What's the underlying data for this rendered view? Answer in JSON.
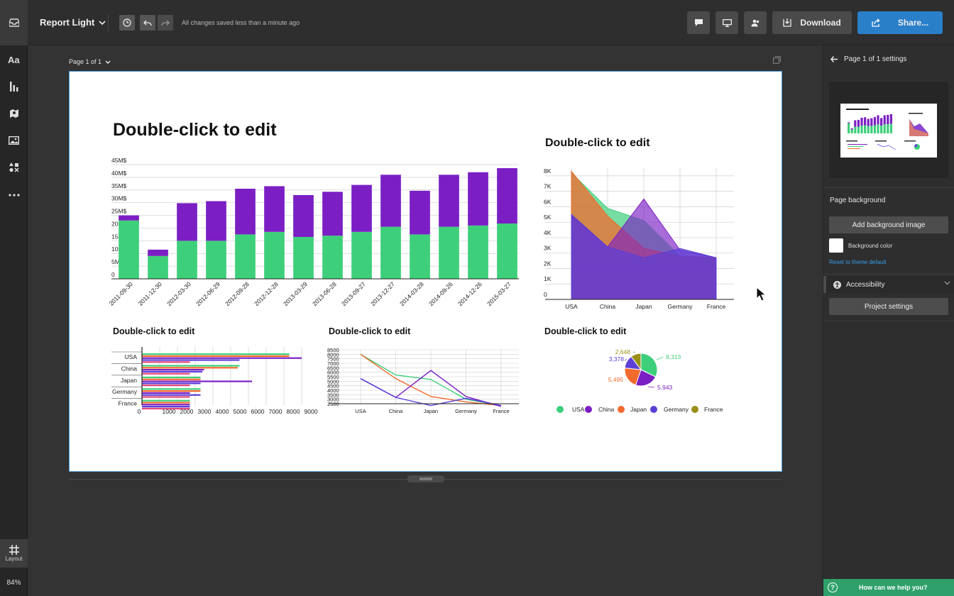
{
  "app": {
    "title": "Report Light",
    "save_status": "All changes saved less than a minute ago",
    "download_label": "Download",
    "share_label": "Share...",
    "zoom": "84%",
    "layout_label": "Layout"
  },
  "canvas": {
    "page_selector": "Page 1 of 1"
  },
  "right_panel": {
    "header": "Page 1 of 1 settings",
    "page_background_label": "Page background",
    "add_background_image": "Add background image",
    "background_color_label": "Background color",
    "background_color": "#ffffff",
    "reset_link": "Reset to theme default",
    "accessibility_label": "Accessibility",
    "project_settings": "Project settings",
    "help_label": "How can we help you?",
    "help_icon_glyph": "?"
  },
  "colors": {
    "green": "#3ecf7a",
    "purple": "#7b1fc4",
    "orange": "#f26a2e",
    "indigo": "#5b3fd6",
    "olive": "#9a8f17",
    "accent": "#2a7fc9",
    "help": "#2fa06a"
  },
  "chart_data": [
    {
      "id": "stacked-bar",
      "type": "bar",
      "title": "Double-click to edit",
      "categories": [
        "2011-09-30",
        "2011-12-30",
        "2012-03-30",
        "2012-06-29",
        "2012-09-28",
        "2012-12-28",
        "2013-03-29",
        "2013-06-28",
        "2013-09-27",
        "2013-12-27",
        "2014-03-28",
        "2014-09-26",
        "2014-12-26",
        "2015-03-27"
      ],
      "series": [
        {
          "values": [
            23,
            9,
            15,
            15,
            17.5,
            18.5,
            16.5,
            17,
            18.5,
            20.5,
            17.5,
            20.5,
            21,
            21.8
          ]
        },
        {
          "values": [
            2,
            2.5,
            14.8,
            15.6,
            18,
            18,
            16.5,
            17.3,
            18.5,
            20.5,
            17.2,
            20.5,
            21,
            21.8
          ]
        }
      ],
      "ylim": [
        0,
        45
      ],
      "yticks": [
        "0",
        "5M$",
        "10M$",
        "15M$",
        "20M$",
        "25M$",
        "30M$",
        "35M$",
        "40M$",
        "45M$"
      ]
    },
    {
      "id": "area",
      "type": "area",
      "title": "Double-click to edit",
      "categories": [
        "USA",
        "China",
        "Japan",
        "Germany",
        "France"
      ],
      "series": [
        {
          "values": [
            8200,
            5900,
            5100,
            2800,
            2700
          ]
        },
        {
          "values": [
            8300,
            5400,
            3300,
            2800,
            2700
          ]
        },
        {
          "values": [
            5400,
            3400,
            6500,
            3200,
            2700
          ]
        },
        {
          "values": [
            5500,
            3400,
            2700,
            3300,
            2700
          ]
        }
      ],
      "ylim": [
        0,
        8500
      ],
      "yticks": [
        "0",
        "1K",
        "2K",
        "3K",
        "4K",
        "5K",
        "6K",
        "7K",
        "8K"
      ]
    },
    {
      "id": "hbar",
      "type": "bar",
      "title": "Double-click to edit",
      "categories": [
        "USA",
        "China",
        "Japan",
        "Germany",
        "France"
      ],
      "series": [
        {
          "values": [
            8300,
            5500,
            3300,
            3300,
            2700
          ]
        },
        {
          "values": [
            8300,
            5400,
            3300,
            3300,
            2700
          ]
        },
        {
          "values": [
            9000,
            3500,
            6200,
            2700,
            2700
          ]
        },
        {
          "values": [
            5500,
            3400,
            3300,
            3300,
            2700
          ]
        },
        {
          "values": [
            2700,
            2700,
            2700,
            2700,
            2700
          ]
        }
      ],
      "xticks": [
        "0",
        "1000",
        "2000",
        "3000",
        "4000",
        "5000",
        "6000",
        "7000",
        "8000",
        "9000"
      ],
      "xlim": [
        0,
        9000
      ]
    },
    {
      "id": "line",
      "type": "line",
      "title": "Double-click to edit",
      "categories": [
        "USA",
        "China",
        "Japan",
        "Germany",
        "France"
      ],
      "series": [
        {
          "values": [
            8000,
            5700,
            5200,
            3000,
            2300
          ]
        },
        {
          "values": [
            8000,
            5300,
            3300,
            2700,
            2300
          ]
        },
        {
          "values": [
            5300,
            3200,
            6200,
            3300,
            2200
          ]
        },
        {
          "values": [
            5300,
            3200,
            2300,
            3100,
            2300
          ]
        }
      ],
      "ylim": [
        2500,
        8500
      ],
      "yticks": [
        "2500",
        "3000",
        "3500",
        "4000",
        "4500",
        "5000",
        "5500",
        "6000",
        "6500",
        "7000",
        "7500",
        "8000",
        "8500"
      ]
    },
    {
      "id": "pie",
      "type": "pie",
      "title": "Double-click to edit",
      "categories": [
        "USA",
        "China",
        "Japan",
        "Germany",
        "France"
      ],
      "values": [
        8313,
        5943,
        5495,
        3378,
        2648
      ],
      "labels": [
        "8,313",
        "5,943",
        "5,495",
        "3,378",
        "2,648"
      ],
      "legend_position": "bottom"
    }
  ]
}
